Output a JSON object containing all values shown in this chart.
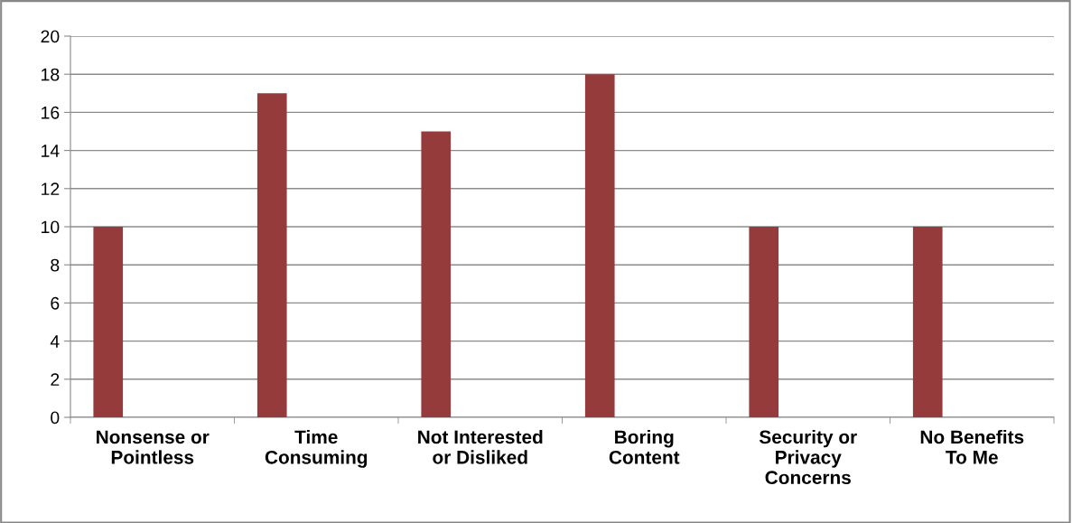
{
  "chart_data": {
    "type": "bar",
    "categories": [
      "Nonsense or\nPointless",
      "Time\nConsuming",
      "Not Interested\nor Disliked",
      "Boring\nContent",
      "Security or\nPrivacy\nConcerns",
      "No Benefits\nTo Me"
    ],
    "values": [
      10,
      17,
      15,
      18,
      10,
      10
    ],
    "color": "#953b3b",
    "ylim": [
      0,
      20
    ],
    "yticks": [
      0,
      2,
      4,
      6,
      8,
      10,
      12,
      14,
      16,
      18,
      20
    ],
    "grid": "y",
    "legend": false
  }
}
